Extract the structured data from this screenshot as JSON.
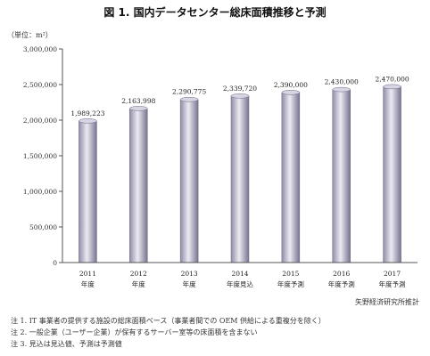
{
  "title": "図 1.  国内データセンター総床面積推移と予測",
  "chart_data": {
    "type": "bar",
    "unit_label": "（単位：m²）",
    "categories": [
      "2011",
      "2012",
      "2013",
      "2014",
      "2015",
      "2016",
      "2017"
    ],
    "sublabels": [
      "年度",
      "年度",
      "年度",
      "年度見込",
      "年度予測",
      "年度予測",
      "年度予測"
    ],
    "values": [
      1989223,
      2163998,
      2290775,
      2339720,
      2390000,
      2430000,
      2470000
    ],
    "value_labels": [
      "1,989,223",
      "2,163,998",
      "2,290,775",
      "2,339,720",
      "2,390,000",
      "2,430,000",
      "2,470,000"
    ],
    "ylim": [
      0,
      3000000
    ],
    "yticks": [
      0,
      500000,
      1000000,
      1500000,
      2000000,
      2500000,
      3000000
    ],
    "ytick_labels": [
      "0",
      "500,000",
      "1,000,000",
      "1,500,000",
      "2,000,000",
      "2,500,000",
      "3,000,000"
    ],
    "grid": false,
    "bar_color": "#b9b7c9"
  },
  "source": "矢野経済研究所推計",
  "notes": [
    "注 1. IT 事業者の提供する施設の総床面積ベース（事業者間での OEM 供給による重複分を除く）",
    "注 2.  一般企業（ユーザー企業）が保有するサーバー室等の床面積を含まない",
    "注 3.  見込は見込値、予測は予測値"
  ]
}
